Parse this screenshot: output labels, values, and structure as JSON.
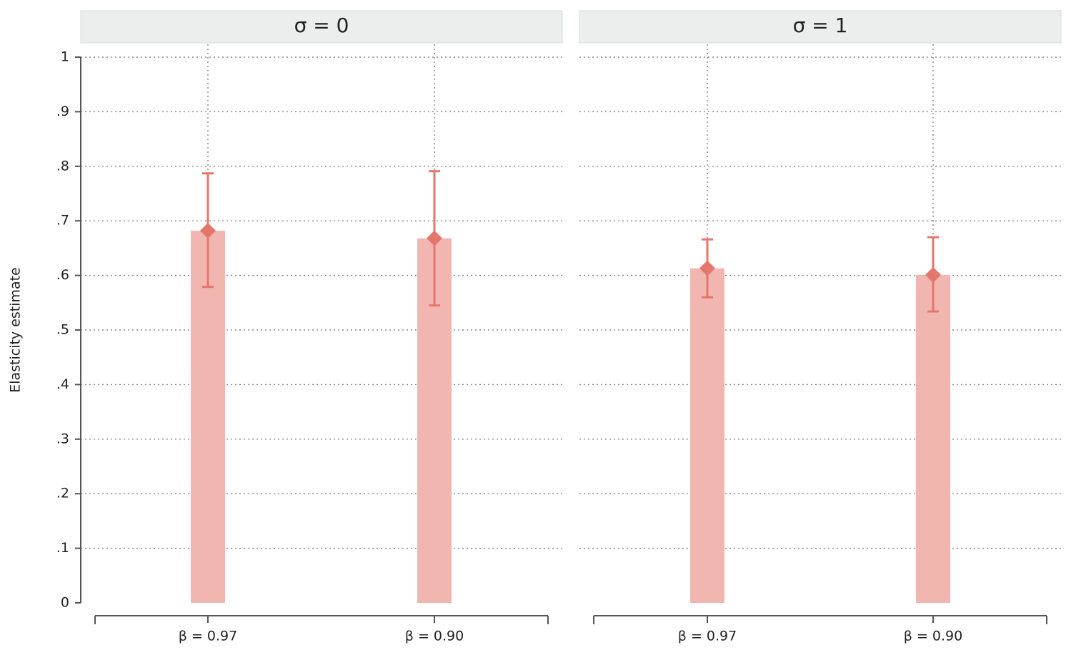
{
  "chart_data": [
    {
      "type": "bar",
      "title": "σ = 0",
      "ylabel": "Elasticity estimate",
      "categories": [
        "β = 0.97",
        "β = 0.90"
      ],
      "values": [
        0.682,
        0.668
      ],
      "lower": [
        0.579,
        0.545
      ],
      "upper": [
        0.787,
        0.791
      ],
      "color": "#f2b6b1",
      "error_color": "#e5766b",
      "ylim": [
        0,
        1
      ],
      "yticks": [
        0,
        {
          "value": 0.1,
          "label": ".1"
        },
        {
          "value": 0.2,
          "label": ".2"
        },
        {
          "value": 0.3,
          "label": ".3"
        },
        {
          "value": 0.4,
          "label": ".4"
        },
        {
          "value": 0.5,
          "label": ".5"
        },
        {
          "value": 0.6,
          "label": ".6"
        },
        {
          "value": 0.7,
          "label": ".7"
        },
        {
          "value": 0.8,
          "label": ".8"
        },
        {
          "value": 0.9,
          "label": ".9"
        },
        1
      ],
      "grid": true
    },
    {
      "type": "bar",
      "title": "σ = 1",
      "categories": [
        "β = 0.97",
        "β = 0.90"
      ],
      "values": [
        0.613,
        0.601
      ],
      "lower": [
        0.56,
        0.534
      ],
      "upper": [
        0.666,
        0.67
      ],
      "color": "#f2b6b1",
      "error_color": "#e5766b",
      "ylim": [
        0,
        1
      ],
      "grid": true
    }
  ]
}
